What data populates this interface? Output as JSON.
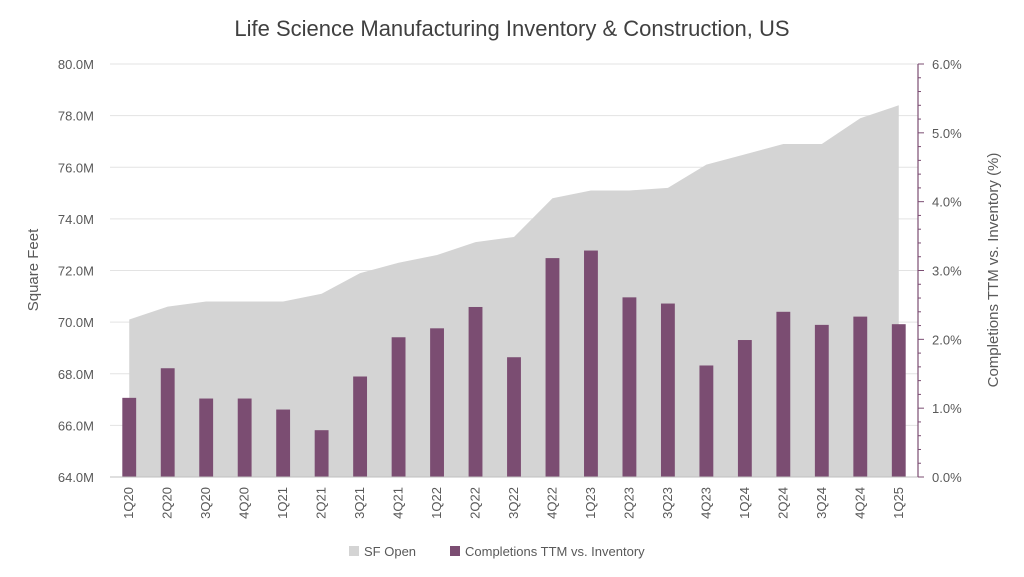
{
  "chart_data": {
    "type": "bar",
    "title": "Life Science Manufacturing Inventory & Construction, US",
    "categories": [
      "1Q20",
      "2Q20",
      "3Q20",
      "4Q20",
      "1Q21",
      "2Q21",
      "3Q21",
      "4Q21",
      "1Q22",
      "2Q22",
      "3Q22",
      "4Q22",
      "1Q23",
      "2Q23",
      "3Q23",
      "4Q23",
      "1Q24",
      "2Q24",
      "3Q24",
      "4Q24",
      "1Q25"
    ],
    "ylabel_left": "Square Feet",
    "ylabel_right": "Completions TTM vs. Inventory (%)",
    "ylim_left": [
      64000000,
      80000000
    ],
    "ylim_right": [
      0,
      6
    ],
    "left_ticks": [
      {
        "value": 64000000,
        "label": "64.0M"
      },
      {
        "value": 66000000,
        "label": "66.0M"
      },
      {
        "value": 68000000,
        "label": "68.0M"
      },
      {
        "value": 70000000,
        "label": "70.0M"
      },
      {
        "value": 72000000,
        "label": "72.0M"
      },
      {
        "value": 74000000,
        "label": "74.0M"
      },
      {
        "value": 76000000,
        "label": "76.0M"
      },
      {
        "value": 78000000,
        "label": "78.0M"
      },
      {
        "value": 80000000,
        "label": "80.0M"
      }
    ],
    "right_ticks": [
      {
        "value": 0,
        "label": "0.0%"
      },
      {
        "value": 1,
        "label": "1.0%"
      },
      {
        "value": 2,
        "label": "2.0%"
      },
      {
        "value": 3,
        "label": "3.0%"
      },
      {
        "value": 4,
        "label": "4.0%"
      },
      {
        "value": 5,
        "label": "5.0%"
      },
      {
        "value": 6,
        "label": "6.0%"
      }
    ],
    "series": [
      {
        "name": "SF Open",
        "type": "area",
        "axis": "left",
        "color": "#d4d4d4",
        "values": [
          70100000,
          70600000,
          70800000,
          70800000,
          70800000,
          71100000,
          71900000,
          72300000,
          72600000,
          73100000,
          73300000,
          74800000,
          75100000,
          75100000,
          75200000,
          76100000,
          76500000,
          76900000,
          76900000,
          77900000,
          78400000
        ]
      },
      {
        "name": "Completions TTM vs. Inventory",
        "type": "bar",
        "axis": "right",
        "color": "#7b4d72",
        "values": [
          1.15,
          1.58,
          1.14,
          1.14,
          0.98,
          0.68,
          1.46,
          2.03,
          2.16,
          2.47,
          1.74,
          3.18,
          3.29,
          2.61,
          2.52,
          1.62,
          1.99,
          2.4,
          2.21,
          2.33,
          2.22
        ]
      }
    ],
    "grid": true,
    "legend_position": "bottom"
  }
}
